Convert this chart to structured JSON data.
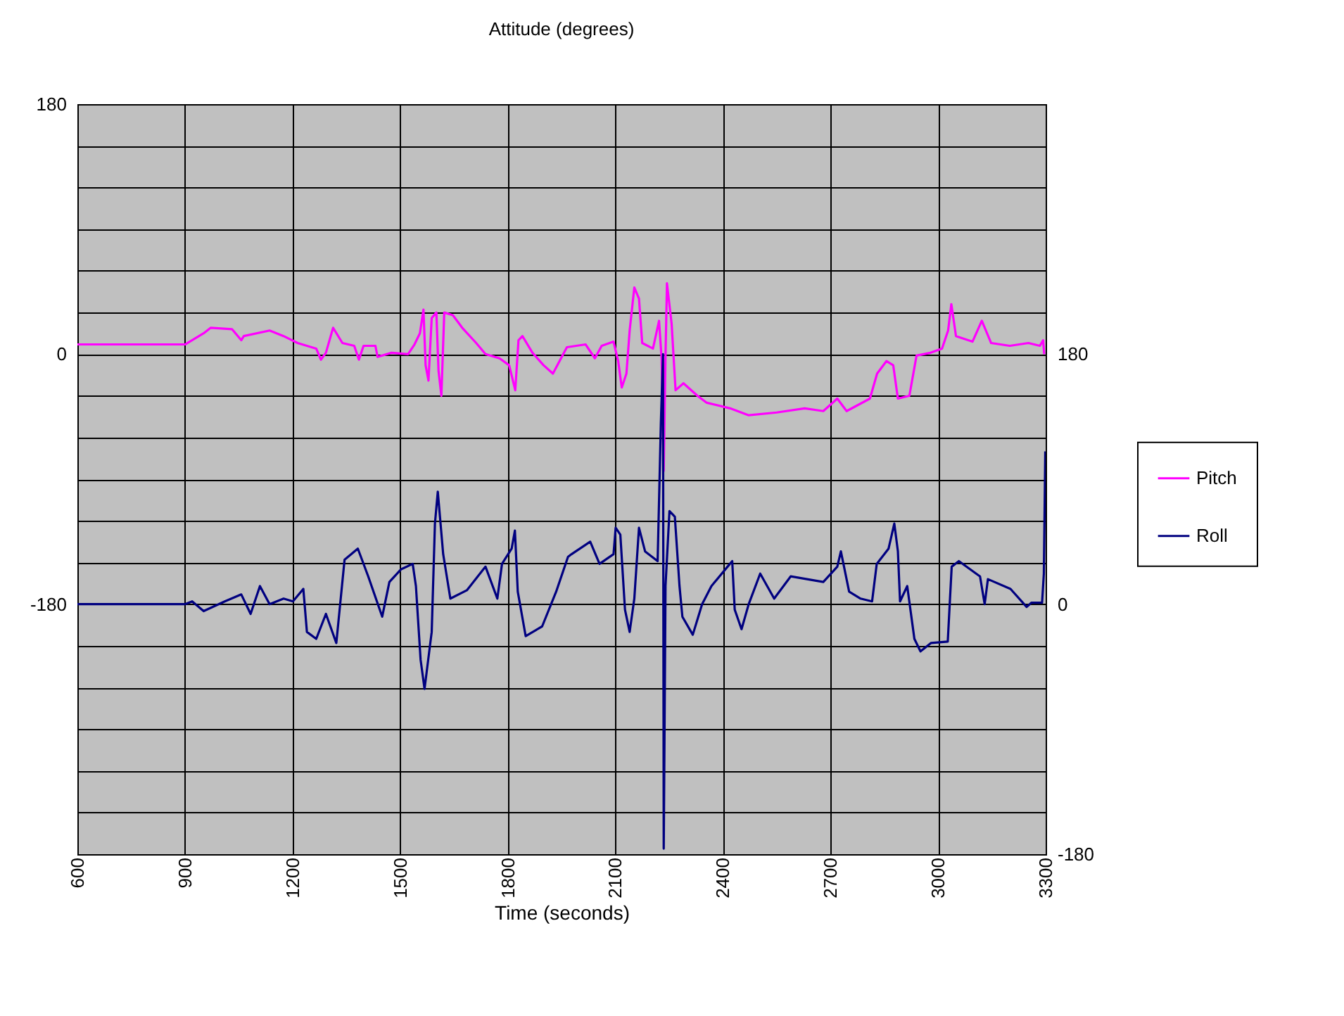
{
  "chart_data": {
    "type": "line",
    "title": "Attitude (degrees)",
    "xlabel": "Time (seconds)",
    "xlim": [
      600,
      3300
    ],
    "xticks": [
      600,
      900,
      1200,
      1500,
      1800,
      2100,
      2400,
      2700,
      3000,
      3300
    ],
    "ylim": [
      -360,
      180
    ],
    "yticks": [
      {
        "value": -330,
        "label": null
      },
      {
        "value": -300,
        "label": null
      },
      {
        "value": -270,
        "label": null
      },
      {
        "value": -240,
        "label": null
      },
      {
        "value": -210,
        "label": null
      },
      -180,
      {
        "value": -150,
        "label": null
      },
      {
        "value": -120,
        "label": null
      },
      {
        "value": -90,
        "label": null
      },
      {
        "value": -60,
        "label": null
      },
      {
        "value": -30,
        "label": null
      },
      0,
      {
        "value": 30,
        "label": null
      },
      {
        "value": 60,
        "label": null
      },
      {
        "value": 90,
        "label": null
      },
      {
        "value": 120,
        "label": null
      },
      {
        "value": 150,
        "label": null
      },
      180
    ],
    "y2lim": [
      -180,
      360
    ],
    "y2ticks": [
      -180,
      0,
      180
    ],
    "grid": true,
    "legend": "right",
    "series": [
      {
        "name": "Pitch",
        "color": "#ff00ff",
        "x": [
          600,
          900,
          952,
          972,
          1031,
          1057,
          1064,
          1136,
          1175,
          1214,
          1266,
          1279,
          1293,
          1313,
          1339,
          1372,
          1385,
          1398,
          1431,
          1437,
          1476,
          1522,
          1540,
          1555,
          1565,
          1571,
          1579,
          1588,
          1601,
          1607,
          1615,
          1623,
          1647,
          1673,
          1712,
          1738,
          1777,
          1804,
          1821,
          1830,
          1841,
          1869,
          1900,
          1926,
          1965,
          2017,
          2043,
          2062,
          2095,
          2108,
          2118,
          2131,
          2140,
          2153,
          2166,
          2175,
          2205,
          2222,
          2229,
          2235,
          2240,
          2244,
          2257,
          2268,
          2290,
          2329,
          2355,
          2420,
          2472,
          2550,
          2628,
          2680,
          2719,
          2745,
          2810,
          2830,
          2856,
          2875,
          2888,
          2920,
          2940,
          2979,
          3011,
          3028,
          3037,
          3050,
          3096,
          3122,
          3148,
          3200,
          3252,
          3284,
          3293,
          3296
        ],
        "values": [
          7,
          7,
          15,
          19,
          18,
          10,
          13,
          17,
          13,
          8,
          4,
          -4,
          1,
          19,
          8,
          6,
          -4,
          6,
          6,
          -2,
          1,
          0,
          7,
          15,
          32,
          -8,
          -19,
          26,
          30,
          -12,
          -30,
          30,
          28,
          19,
          8,
          0,
          -3,
          -8,
          -26,
          10,
          13,
          1,
          -8,
          -14,
          5,
          7,
          -3,
          6,
          9,
          -5,
          -24,
          -14,
          17,
          48,
          40,
          8,
          4,
          24,
          -3,
          -84,
          -1,
          51,
          22,
          -26,
          -21,
          -30,
          -35,
          -39,
          -44,
          -42,
          -39,
          -41,
          -32,
          -41,
          -32,
          -14,
          -5,
          -8,
          -32,
          -30,
          -1,
          1,
          4,
          17,
          36,
          13,
          9,
          24,
          8,
          6,
          8,
          6,
          10,
          0
        ]
      },
      {
        "name": "Roll",
        "color": "#000080",
        "axis": "y2",
        "x": [
          600,
          900,
          920,
          952,
          1011,
          1057,
          1083,
          1109,
          1136,
          1175,
          1201,
          1230,
          1240,
          1266,
          1293,
          1322,
          1345,
          1382,
          1411,
          1450,
          1470,
          1502,
          1535,
          1544,
          1557,
          1568,
          1588,
          1597,
          1605,
          1620,
          1640,
          1686,
          1738,
          1771,
          1784,
          1811,
          1820,
          1828,
          1850,
          1896,
          1935,
          1968,
          1978,
          2030,
          2056,
          2095,
          2101,
          2114,
          2127,
          2140,
          2153,
          2166,
          2183,
          2218,
          2227,
          2233,
          2235,
          2240,
          2251,
          2266,
          2279,
          2287,
          2316,
          2342,
          2368,
          2413,
          2426,
          2433,
          2452,
          2472,
          2504,
          2543,
          2589,
          2680,
          2719,
          2729,
          2752,
          2784,
          2816,
          2829,
          2862,
          2878,
          2888,
          2894,
          2914,
          2934,
          2951,
          2980,
          3027,
          3038,
          3058,
          3117,
          3130,
          3139,
          3202,
          3247,
          3260,
          3290,
          3295,
          3299
        ],
        "values": [
          0,
          0,
          2,
          -5,
          2,
          7,
          -7,
          13,
          0,
          4,
          2,
          11,
          -20,
          -25,
          -7,
          -28,
          32,
          40,
          20,
          -9,
          16,
          25,
          29,
          13,
          -40,
          -61,
          -20,
          58,
          81,
          36,
          4,
          10,
          27,
          4,
          29,
          40,
          53,
          9,
          -23,
          -16,
          9,
          34,
          36,
          45,
          29,
          36,
          55,
          50,
          -4,
          -20,
          4,
          55,
          38,
          31,
          130,
          180,
          -176,
          13,
          67,
          63,
          13,
          -9,
          -22,
          0,
          13,
          27,
          31,
          -4,
          -18,
          0,
          22,
          4,
          20,
          16,
          27,
          38,
          9,
          4,
          2,
          29,
          40,
          58,
          38,
          2,
          13,
          -25,
          -34,
          -28,
          -27,
          27,
          31,
          20,
          0,
          18,
          11,
          -2,
          1,
          1,
          22,
          110
        ]
      }
    ]
  }
}
